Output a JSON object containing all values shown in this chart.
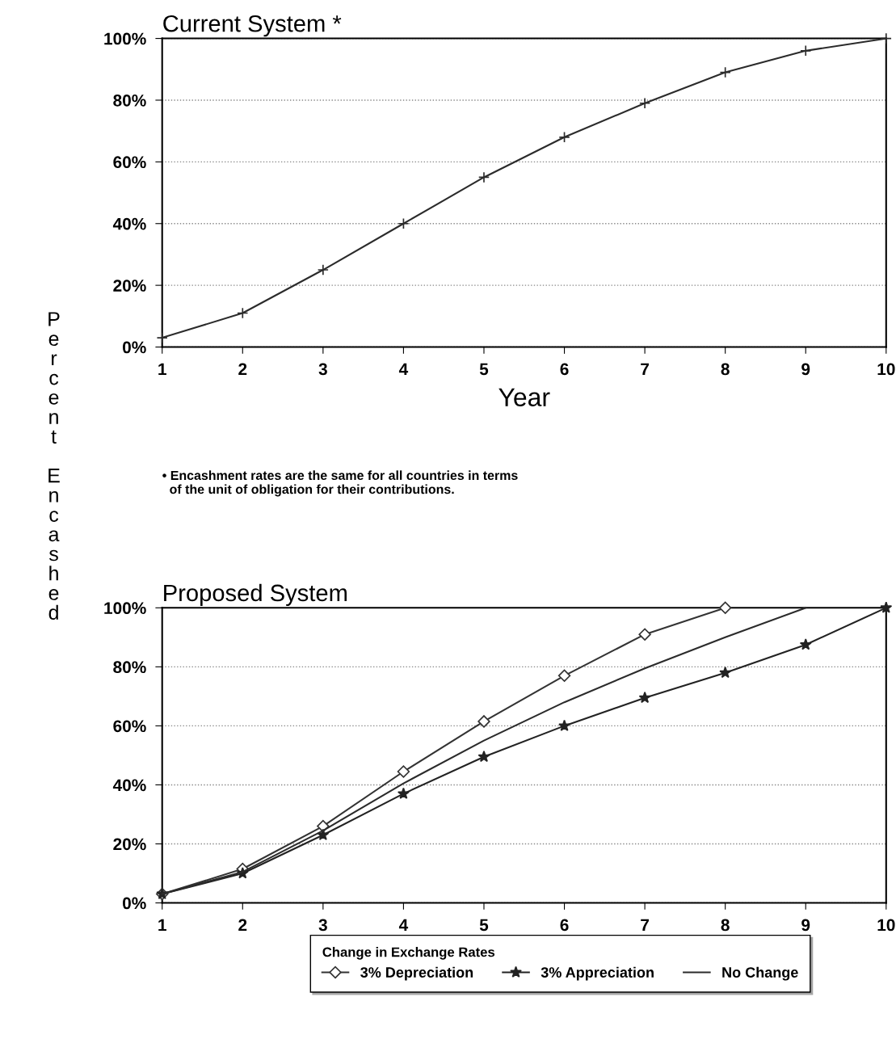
{
  "chart_data": [
    {
      "type": "line",
      "title": "Current System *",
      "xlabel": "Year",
      "ylabel": "Percent Encashed",
      "x": [
        1,
        2,
        3,
        4,
        5,
        6,
        7,
        8,
        9,
        10
      ],
      "series": [
        {
          "color": "#2b2b2b",
          "values": [
            3,
            11,
            25,
            40,
            55,
            68,
            79,
            89,
            96,
            100
          ]
        }
      ],
      "xlim": [
        1,
        10
      ],
      "xticks": [
        1,
        2,
        3,
        4,
        5,
        6,
        7,
        8,
        9,
        10
      ],
      "ylim": [
        0,
        100
      ],
      "yticks": [
        {
          "value": 0,
          "label": "0%"
        },
        {
          "value": 20,
          "label": "20%"
        },
        {
          "value": 40,
          "label": "40%"
        },
        {
          "value": 60,
          "label": "60%"
        },
        {
          "value": 80,
          "label": "80%"
        },
        {
          "value": 100,
          "label": "100%"
        }
      ],
      "grid": "y",
      "marker": "cross",
      "line_style": "solid",
      "annotations": [
        "• Encashment rates are the same for all countries in terms\n  of the unit of obligation for their contributions."
      ]
    },
    {
      "type": "line",
      "title": "Proposed System",
      "legend_title": "Change in Exchange Rates",
      "x": [
        1,
        2,
        3,
        4,
        5,
        6,
        7,
        8,
        9,
        10
      ],
      "series": [
        {
          "name": "3% Depreciation",
          "color": "#333333",
          "marker": "diamond",
          "values": [
            3,
            11.5,
            26,
            44.5,
            61.5,
            77,
            91,
            100,
            null,
            null
          ]
        },
        {
          "name": "3% Appreciation",
          "color": "#222222",
          "marker": "star",
          "values": [
            3,
            10,
            23,
            37,
            49.5,
            60,
            69.5,
            78,
            87.5,
            100
          ]
        },
        {
          "name": "No Change",
          "color": "#2b2b2b",
          "marker": "none",
          "values": [
            3,
            10.5,
            24.5,
            40.5,
            55,
            68,
            79.5,
            90,
            100,
            null
          ]
        }
      ],
      "xlim": [
        1,
        10
      ],
      "xticks": [
        1,
        2,
        3,
        4,
        5,
        6,
        7,
        8,
        9,
        10
      ],
      "ylim": [
        0,
        100
      ],
      "yticks": [
        {
          "value": 0,
          "label": "0%"
        },
        {
          "value": 20,
          "label": "20%"
        },
        {
          "value": 40,
          "label": "40%"
        },
        {
          "value": 60,
          "label": "60%"
        },
        {
          "value": 80,
          "label": "80%"
        },
        {
          "value": 100,
          "label": "100%"
        }
      ],
      "grid": "y",
      "legend": "bottom",
      "line_style": "solid"
    }
  ]
}
